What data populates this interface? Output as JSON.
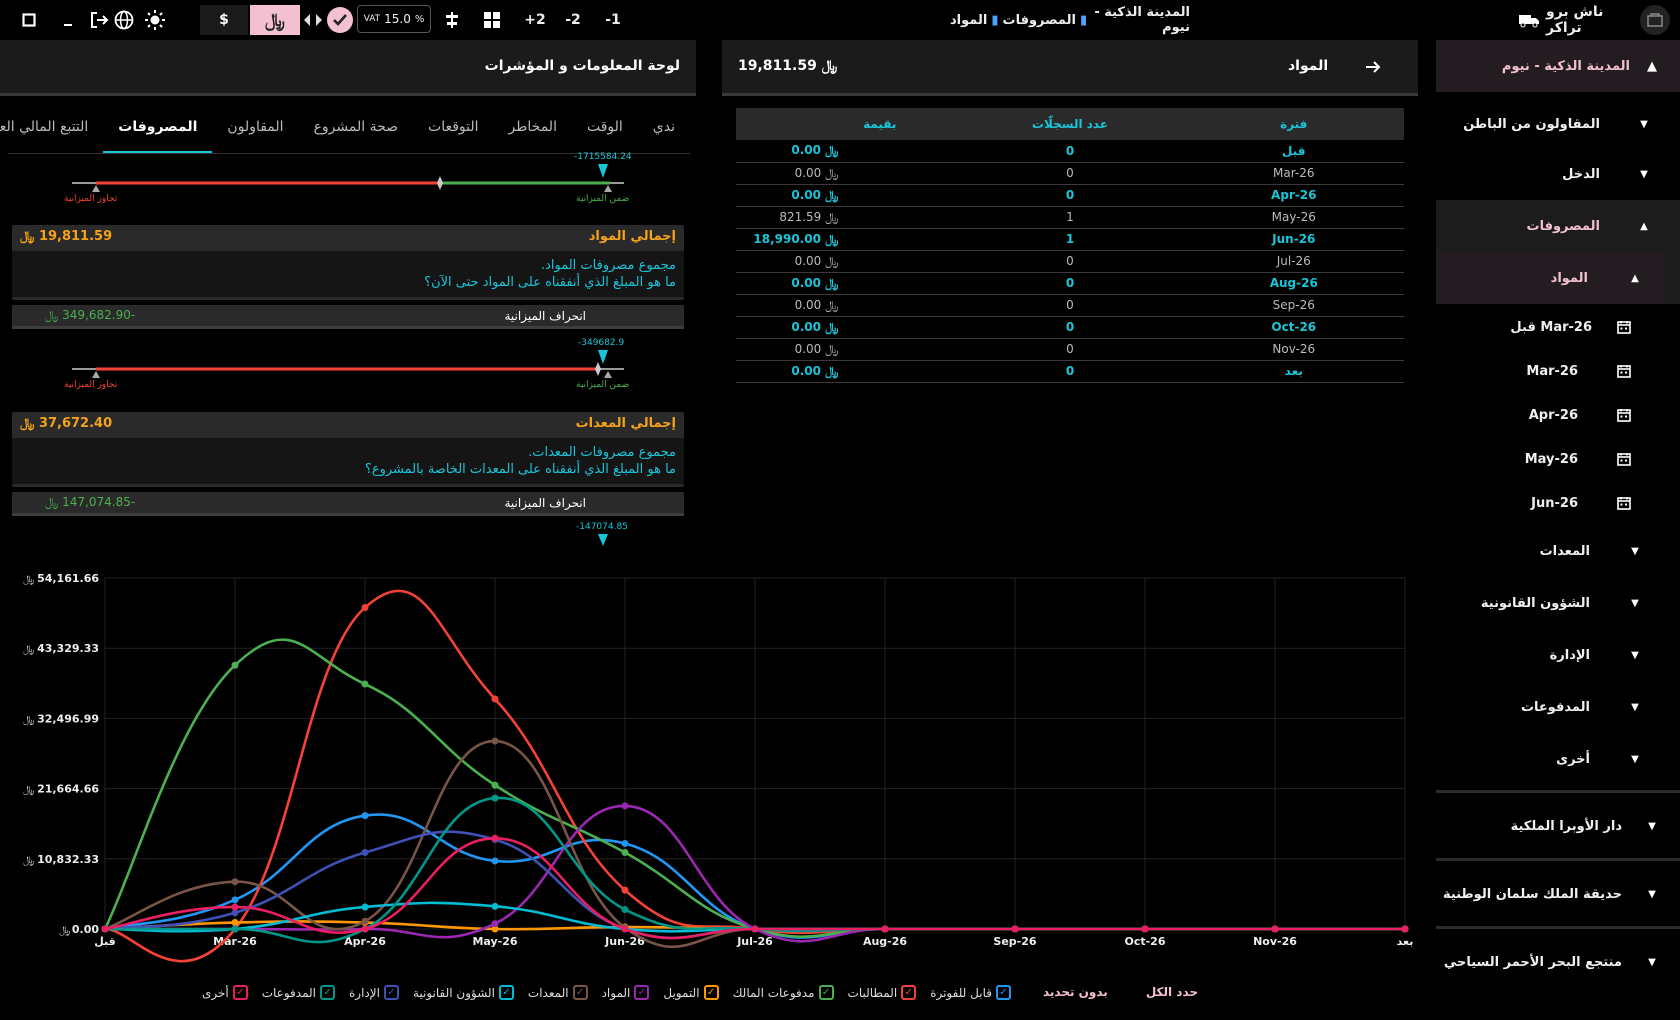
{
  "topbar": {
    "app_name": "ناش برو تراكر",
    "breadcrumb": [
      "المدينة الذكية - نيوم",
      "المصروفات",
      "المواد"
    ],
    "zoom_buttons": [
      "-1",
      "-2",
      "+2"
    ],
    "vat_label": "VAT",
    "vat_value": "15.0",
    "vat_unit": "%",
    "currency_dollar": "$",
    "currency_sar": "﷼"
  },
  "left": {
    "title": "لوحة المعلومات و المؤشرات",
    "tabs": [
      "ندي",
      "الوقت",
      "المخاطر",
      "التوقعات",
      "صحة المشروع",
      "المقاولون",
      "المصروفات",
      "التتبع المالي العام"
    ],
    "active_tab": "المصروفات",
    "gauge_labels": {
      "over": "تجاوز الميزانية",
      "within": "ضمن الميزانية"
    },
    "gauge1_value": "-1715584.24",
    "gauge2_value": "-349682.9",
    "gauge3_value": "-147074.85",
    "materials": {
      "title": "إجمالي المواد",
      "value": "19,811.59",
      "desc1": "مجموع مصروفات المواد.",
      "desc2": "ما هو المبلغ الذي أنفقناه على المواد حتى الآن؟",
      "deviation_label": "انحراف الميزانية",
      "deviation_value": "-349,682.90"
    },
    "equipment": {
      "title": "إجمالي المعدات",
      "value": "37,672.40",
      "desc1": "مجموع مصروفات المعدات.",
      "desc2": "ما هو المبلغ الذي أنفقناه على المعدات الخاصة بالمشروع؟",
      "deviation_label": "انحراف الميزانية",
      "deviation_value": "-147,074.85"
    }
  },
  "mid": {
    "title": "المواد",
    "total": "19,811.59",
    "columns": [
      "فترة",
      "عدد السجلّات",
      "بقيمة"
    ],
    "rows": [
      {
        "period": "قبل",
        "count": "0",
        "value": "0.00",
        "hl": true
      },
      {
        "period": "Mar-26",
        "count": "0",
        "value": "0.00",
        "hl": false
      },
      {
        "period": "Apr-26",
        "count": "0",
        "value": "0.00",
        "hl": true
      },
      {
        "period": "May-26",
        "count": "1",
        "value": "821.59",
        "hl": false
      },
      {
        "period": "Jun-26",
        "count": "1",
        "value": "18,990.00",
        "hl": true
      },
      {
        "period": "Jul-26",
        "count": "0",
        "value": "0.00",
        "hl": false
      },
      {
        "period": "Aug-26",
        "count": "0",
        "value": "0.00",
        "hl": true
      },
      {
        "period": "Sep-26",
        "count": "0",
        "value": "0.00",
        "hl": false
      },
      {
        "period": "Oct-26",
        "count": "0",
        "value": "0.00",
        "hl": true
      },
      {
        "period": "Nov-26",
        "count": "0",
        "value": "0.00",
        "hl": false
      },
      {
        "period": "بعد",
        "count": "0",
        "value": "0.00",
        "hl": true
      }
    ]
  },
  "sidebar": {
    "project": "المدينة الذكية - نيوم",
    "subcontractors": "المقاولون من الباطن",
    "income": "الدخل",
    "expenses": "المصروفات",
    "materials": "المواد",
    "periods": [
      "قبل Mar-26",
      "Mar-26",
      "Apr-26",
      "May-26",
      "Jun-26"
    ],
    "categories": [
      "المعدات",
      "الشؤون القانونية",
      "الإدارة",
      "المدفوعات",
      "أخرى"
    ],
    "other_projects": [
      "دار الأوبرا الملكية",
      "حديقة الملك سلمان الوطنية",
      "منتجع البحر الأحمر السياحي"
    ]
  },
  "legend": {
    "select_all": "حدد الكل",
    "deselect": "بدون تحديد",
    "items": [
      {
        "label": "قابل للفوترة",
        "color": "#2196f3"
      },
      {
        "label": "المطالبات",
        "color": "#f44336"
      },
      {
        "label": "مدفوعات المالك",
        "color": "#4caf50"
      },
      {
        "label": "التمويل",
        "color": "#ff9800"
      },
      {
        "label": "المواد",
        "color": "#9c27b0"
      },
      {
        "label": "المعدات",
        "color": "#795548"
      },
      {
        "label": "الشؤون القانونية",
        "color": "#00bcd4"
      },
      {
        "label": "الإدارة",
        "color": "#3f51b5"
      },
      {
        "label": "المدفوعات",
        "color": "#009688"
      },
      {
        "label": "أخرى",
        "color": "#e91e63"
      }
    ]
  },
  "chart_data": {
    "type": "line",
    "categories": [
      "قبل",
      "Mar-26",
      "Apr-26",
      "May-26",
      "Jun-26",
      "Jul-26",
      "Aug-26",
      "Sep-26",
      "Oct-26",
      "Nov-26",
      "بعد"
    ],
    "y_ticks": [
      "0.00",
      "10,832.33",
      "21,664.66",
      "32,496.99",
      "43,329.33",
      "54,161.66"
    ],
    "ylim": [
      0,
      54161.66
    ],
    "grid": true,
    "series": [
      {
        "name": "قابل للفوترة",
        "color": "#2196f3",
        "values": [
          0,
          4500,
          17500,
          10500,
          13200,
          0,
          0,
          0,
          0,
          0,
          0
        ]
      },
      {
        "name": "المطالبات",
        "color": "#f44336",
        "values": [
          0,
          0,
          49600,
          35500,
          6000,
          0,
          0,
          0,
          0,
          0,
          0
        ]
      },
      {
        "name": "مدفوعات المالك",
        "color": "#4caf50",
        "values": [
          0,
          40700,
          37800,
          22200,
          11800,
          0,
          0,
          0,
          0,
          0,
          0
        ]
      },
      {
        "name": "التمويل",
        "color": "#ff9800",
        "values": [
          0,
          1000,
          1000,
          0,
          300,
          0,
          0,
          0,
          0,
          0,
          0
        ]
      },
      {
        "name": "المواد",
        "color": "#9c27b0",
        "values": [
          0,
          0,
          0,
          821.59,
          18990,
          0,
          0,
          0,
          0,
          0,
          0
        ]
      },
      {
        "name": "المعدات",
        "color": "#795548",
        "values": [
          0,
          7300,
          1200,
          29000,
          200,
          0,
          0,
          0,
          0,
          0,
          0
        ]
      },
      {
        "name": "الشؤون القانونية",
        "color": "#00bcd4",
        "values": [
          0,
          0,
          3400,
          3500,
          0,
          0,
          0,
          0,
          0,
          0,
          0
        ]
      },
      {
        "name": "الإدارة",
        "color": "#3f51b5",
        "values": [
          0,
          2500,
          11800,
          13800,
          0,
          0,
          0,
          0,
          0,
          0,
          0
        ]
      },
      {
        "name": "المدفوعات",
        "color": "#009688",
        "values": [
          0,
          0,
          0,
          20200,
          3000,
          0,
          0,
          0,
          0,
          0,
          0
        ]
      },
      {
        "name": "أخرى",
        "color": "#e91e63",
        "values": [
          0,
          3400,
          0,
          14000,
          0,
          0,
          0,
          0,
          0,
          0,
          0
        ]
      }
    ]
  }
}
